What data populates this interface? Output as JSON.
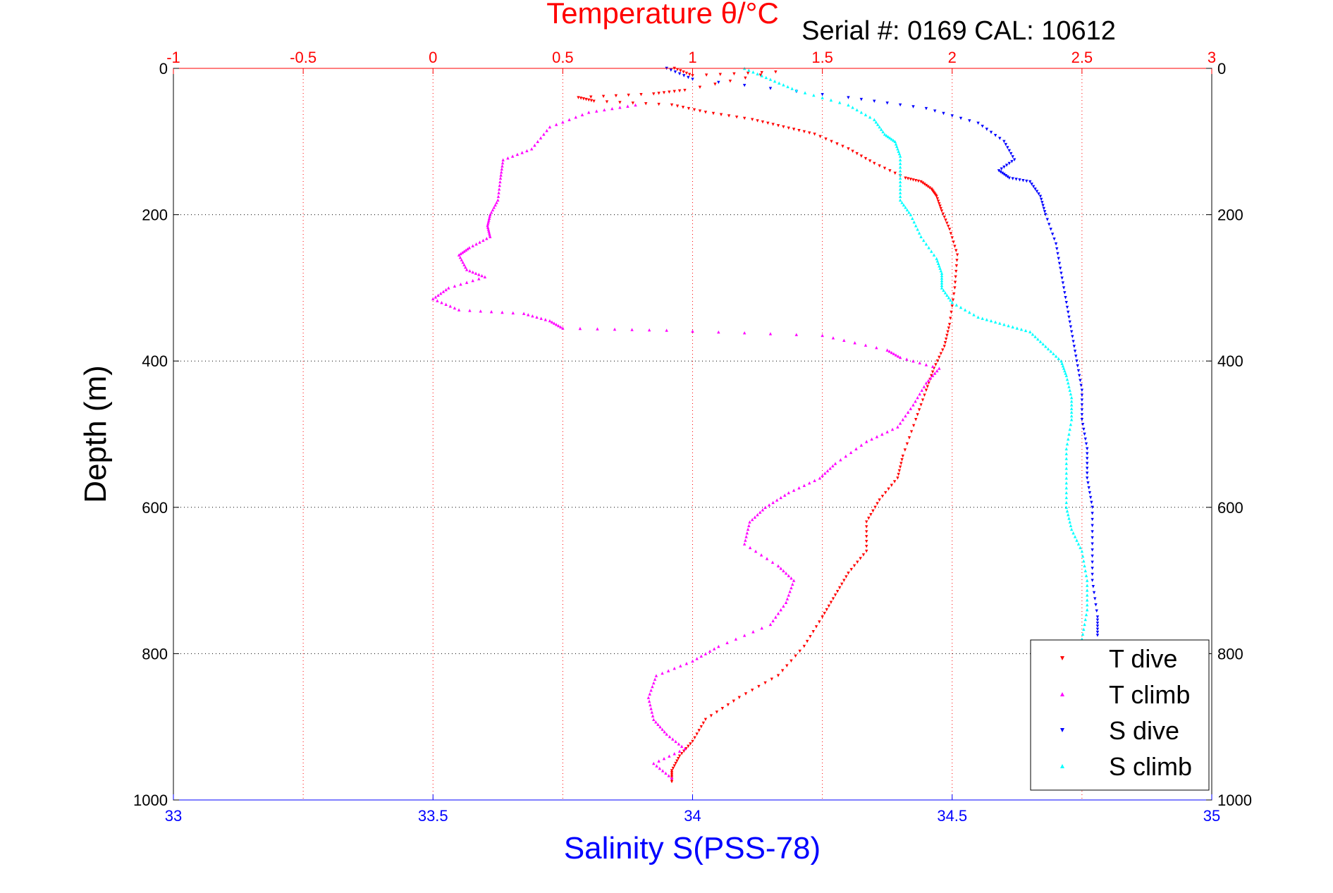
{
  "chart_data": {
    "type": "scatter",
    "title": "Temperature θ/°C",
    "subtitle": "Serial #: 0169 CAL: 10612",
    "ylabel": "Depth (m)",
    "xlabel": "Salinity S(PSS-78)",
    "x_top_label": "Temperature θ/°C",
    "ylim": [
      0,
      1000
    ],
    "y_reversed": true,
    "y_ticks": [
      "0",
      "200",
      "400",
      "600",
      "800",
      "1000"
    ],
    "temperature_axis": {
      "range": [
        -1,
        3
      ],
      "ticks": [
        "-1",
        "-0.5",
        "0",
        "0.5",
        "1",
        "1.5",
        "2",
        "2.5",
        "3"
      ],
      "color": "#ff0000"
    },
    "salinity_axis": {
      "range": [
        33,
        35
      ],
      "ticks": [
        "33",
        "33.5",
        "34",
        "34.5",
        "35"
      ],
      "color": "#0000ff"
    },
    "grid": true,
    "legend_position": "bottom-right",
    "series": [
      {
        "name": "T dive",
        "axis": "temperature",
        "color": "#ff0000",
        "marker": "triangle-down",
        "points": [
          [
            0.93,
            0
          ],
          [
            1.0,
            10
          ],
          [
            1.32,
            5
          ],
          [
            0.97,
            30
          ],
          [
            0.85,
            35
          ],
          [
            0.56,
            40
          ],
          [
            0.62,
            45
          ],
          [
            0.92,
            50
          ],
          [
            1.05,
            60
          ],
          [
            1.23,
            70
          ],
          [
            1.35,
            80
          ],
          [
            1.47,
            90
          ],
          [
            1.6,
            110
          ],
          [
            1.7,
            130
          ],
          [
            1.82,
            150
          ],
          [
            1.88,
            155
          ],
          [
            1.92,
            165
          ],
          [
            1.94,
            175
          ],
          [
            1.96,
            195
          ],
          [
            1.99,
            220
          ],
          [
            2.02,
            255
          ],
          [
            2.01,
            300
          ],
          [
            1.99,
            350
          ],
          [
            1.97,
            380
          ],
          [
            1.93,
            410
          ],
          [
            1.9,
            440
          ],
          [
            1.86,
            480
          ],
          [
            1.81,
            530
          ],
          [
            1.79,
            560
          ],
          [
            1.72,
            590
          ],
          [
            1.67,
            620
          ],
          [
            1.67,
            660
          ],
          [
            1.6,
            690
          ],
          [
            1.55,
            720
          ],
          [
            1.5,
            750
          ],
          [
            1.43,
            790
          ],
          [
            1.33,
            830
          ],
          [
            1.18,
            860
          ],
          [
            1.05,
            890
          ],
          [
            1.0,
            920
          ],
          [
            0.95,
            940
          ],
          [
            0.92,
            960
          ],
          [
            0.92,
            975
          ]
        ]
      },
      {
        "name": "T climb",
        "axis": "temperature",
        "color": "#ff00ff",
        "marker": "triangle-up",
        "points": [
          [
            0.78,
            50
          ],
          [
            0.6,
            60
          ],
          [
            0.45,
            80
          ],
          [
            0.38,
            110
          ],
          [
            0.27,
            125
          ],
          [
            0.26,
            150
          ],
          [
            0.25,
            180
          ],
          [
            0.22,
            200
          ],
          [
            0.21,
            215
          ],
          [
            0.22,
            230
          ],
          [
            0.14,
            245
          ],
          [
            0.1,
            255
          ],
          [
            0.13,
            275
          ],
          [
            0.2,
            285
          ],
          [
            0.06,
            300
          ],
          [
            0.0,
            315
          ],
          [
            0.1,
            330
          ],
          [
            0.35,
            335
          ],
          [
            0.45,
            345
          ],
          [
            0.5,
            355
          ],
          [
            0.9,
            358
          ],
          [
            1.5,
            365
          ],
          [
            1.75,
            385
          ],
          [
            1.8,
            395
          ],
          [
            1.95,
            410
          ],
          [
            1.9,
            430
          ],
          [
            1.85,
            460
          ],
          [
            1.79,
            490
          ],
          [
            1.67,
            510
          ],
          [
            1.55,
            540
          ],
          [
            1.49,
            560
          ],
          [
            1.37,
            580
          ],
          [
            1.28,
            600
          ],
          [
            1.22,
            620
          ],
          [
            1.2,
            650
          ],
          [
            1.33,
            680
          ],
          [
            1.39,
            700
          ],
          [
            1.36,
            730
          ],
          [
            1.3,
            760
          ],
          [
            1.1,
            790
          ],
          [
            1.0,
            810
          ],
          [
            0.86,
            830
          ],
          [
            0.83,
            860
          ],
          [
            0.85,
            890
          ],
          [
            0.9,
            910
          ],
          [
            0.97,
            930
          ],
          [
            0.85,
            950
          ],
          [
            0.92,
            970
          ]
        ]
      },
      {
        "name": "S dive",
        "axis": "salinity",
        "color": "#0000ff",
        "marker": "triangle-down",
        "points": [
          [
            33.95,
            0
          ],
          [
            34.0,
            15
          ],
          [
            34.3,
            40
          ],
          [
            34.45,
            55
          ],
          [
            34.55,
            75
          ],
          [
            34.6,
            100
          ],
          [
            34.62,
            125
          ],
          [
            34.59,
            140
          ],
          [
            34.61,
            150
          ],
          [
            34.65,
            155
          ],
          [
            34.67,
            175
          ],
          [
            34.68,
            200
          ],
          [
            34.7,
            240
          ],
          [
            34.71,
            280
          ],
          [
            34.72,
            320
          ],
          [
            34.73,
            360
          ],
          [
            34.74,
            400
          ],
          [
            34.75,
            440
          ],
          [
            34.75,
            480
          ],
          [
            34.76,
            520
          ],
          [
            34.76,
            560
          ],
          [
            34.77,
            600
          ],
          [
            34.77,
            650
          ],
          [
            34.77,
            700
          ],
          [
            34.78,
            750
          ],
          [
            34.78,
            775
          ]
        ]
      },
      {
        "name": "S climb",
        "axis": "salinity",
        "color": "#00ffff",
        "marker": "triangle-up",
        "points": [
          [
            34.1,
            0
          ],
          [
            34.15,
            15
          ],
          [
            34.2,
            30
          ],
          [
            34.3,
            50
          ],
          [
            34.35,
            70
          ],
          [
            34.37,
            90
          ],
          [
            34.39,
            100
          ],
          [
            34.4,
            120
          ],
          [
            34.4,
            150
          ],
          [
            34.4,
            180
          ],
          [
            34.42,
            200
          ],
          [
            34.44,
            230
          ],
          [
            34.47,
            260
          ],
          [
            34.48,
            280
          ],
          [
            34.48,
            300
          ],
          [
            34.5,
            320
          ],
          [
            34.55,
            340
          ],
          [
            34.6,
            350
          ],
          [
            34.65,
            360
          ],
          [
            34.68,
            380
          ],
          [
            34.71,
            400
          ],
          [
            34.72,
            420
          ],
          [
            34.73,
            450
          ],
          [
            34.73,
            480
          ],
          [
            34.72,
            520
          ],
          [
            34.72,
            560
          ],
          [
            34.72,
            600
          ],
          [
            34.73,
            630
          ],
          [
            34.75,
            660
          ],
          [
            34.76,
            700
          ],
          [
            34.76,
            740
          ],
          [
            34.75,
            780
          ]
        ]
      }
    ]
  }
}
